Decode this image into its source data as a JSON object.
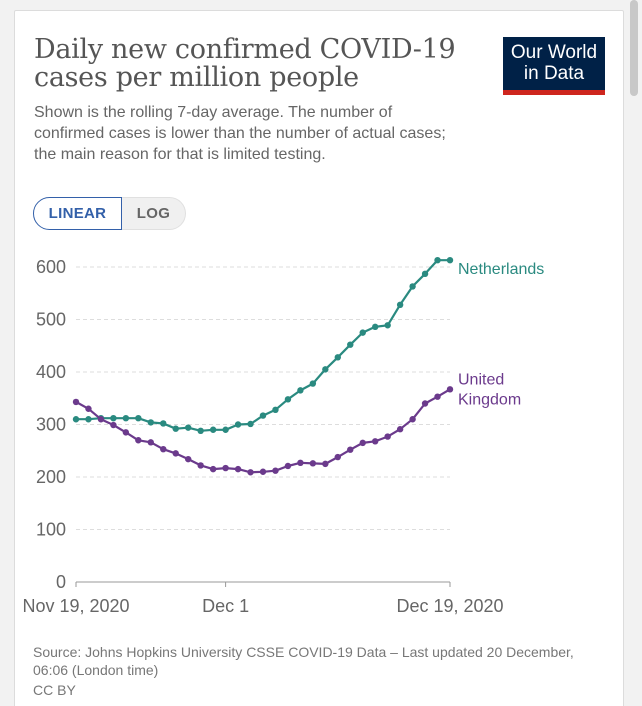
{
  "title": "Daily new confirmed COVID-19 cases per million people",
  "subtitle": "Shown is the rolling 7-day average. The number of confirmed cases is lower than the number of actual cases; the main reason for that is limited testing.",
  "logo": {
    "line1": "Our World",
    "line2": "in Data"
  },
  "toggle": {
    "linear_label": "LINEAR",
    "log_label": "LOG",
    "selected": "LINEAR"
  },
  "source": "Source: Johns Hopkins University CSSE COVID-19 Data – Last updated 20 December, 06:06 (London time)",
  "license": "CC BY",
  "colors": {
    "netherlands": "#2a8a80",
    "united_kingdom": "#6b3a8c",
    "axis_text": "#666666",
    "gridline": "#dddddd",
    "logo_bg": "#002147",
    "logo_accent": "#ce261e",
    "toggle_active": "#3360a9"
  },
  "chart_data": {
    "type": "line",
    "title": "Daily new confirmed COVID-19 cases per million people",
    "xlabel": "",
    "ylabel": "",
    "ylim": [
      0,
      600
    ],
    "yticks": [
      0,
      100,
      200,
      300,
      400,
      500,
      600
    ],
    "x_range": [
      0,
      30
    ],
    "x_ticks": [
      {
        "x": 0,
        "label": "Nov 19, 2020"
      },
      {
        "x": 12,
        "label": "Dec 1"
      },
      {
        "x": 30,
        "label": "Dec 19, 2020"
      }
    ],
    "grid": true,
    "series": [
      {
        "name": "Netherlands",
        "label": "Netherlands",
        "x": [
          0,
          1,
          2,
          3,
          4,
          5,
          6,
          7,
          8,
          9,
          10,
          11,
          12,
          13,
          14,
          15,
          16,
          17,
          18,
          19,
          20,
          21,
          22,
          23,
          24,
          25,
          26,
          27,
          28,
          29,
          30
        ],
        "values": [
          310,
          310,
          312,
          312,
          312,
          312,
          304,
          302,
          292,
          294,
          288,
          290,
          290,
          300,
          301,
          317,
          328,
          348,
          365,
          378,
          405,
          428,
          452,
          475,
          486,
          489,
          528,
          563,
          587,
          613,
          613
        ]
      },
      {
        "name": "United Kingdom",
        "label_lines": [
          "United",
          "Kingdom"
        ],
        "x": [
          0,
          1,
          2,
          3,
          4,
          5,
          6,
          7,
          8,
          9,
          10,
          11,
          12,
          13,
          14,
          15,
          16,
          17,
          18,
          19,
          20,
          21,
          22,
          23,
          24,
          25,
          26,
          27,
          28,
          29,
          30
        ],
        "values": [
          343,
          330,
          310,
          299,
          285,
          270,
          266,
          253,
          245,
          234,
          222,
          215,
          217,
          215,
          209,
          210,
          212,
          221,
          227,
          226,
          225,
          238,
          252,
          265,
          268,
          277,
          291,
          310,
          340,
          353,
          367
        ]
      }
    ]
  }
}
